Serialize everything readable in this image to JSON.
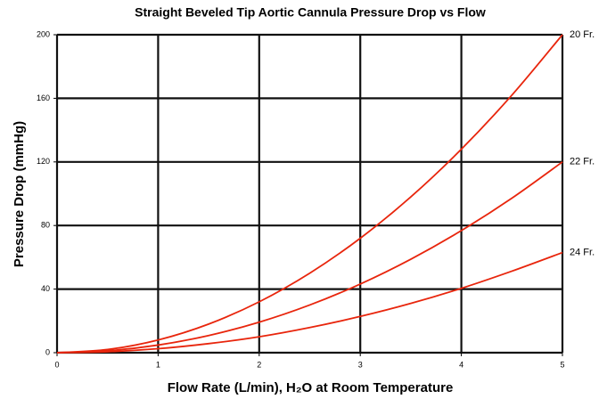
{
  "chart_data": {
    "type": "line",
    "title": "Straight Beveled Tip Aortic Cannula Pressure Drop vs Flow",
    "xlabel": "Flow Rate (L/min), H₂O at Room Temperature",
    "ylabel": "Pressure Drop (mmHg)",
    "x": [
      0,
      0.5,
      1,
      1.5,
      2,
      2.5,
      3,
      3.5,
      4,
      4.5,
      5
    ],
    "series": [
      {
        "name": "20 Fr.",
        "color": "#e8250c",
        "values": [
          0,
          2,
          8,
          18,
          32,
          50,
          72,
          98,
          128,
          162,
          200
        ]
      },
      {
        "name": "22 Fr.",
        "color": "#e8250c",
        "values": [
          0,
          1.2,
          4.8,
          10.8,
          19.2,
          30,
          43.2,
          58.8,
          76.8,
          97.2,
          120
        ]
      },
      {
        "name": "24 Fr.",
        "color": "#e8250c",
        "values": [
          0,
          0.6,
          2.5,
          5.7,
          10,
          15.8,
          22.8,
          31,
          40.5,
          51.3,
          63
        ]
      }
    ],
    "xlim": [
      0,
      5
    ],
    "xticks": [
      0,
      1,
      2,
      3,
      4,
      5
    ],
    "ylim": [
      0,
      200
    ],
    "yticks": [
      0,
      40,
      80,
      120,
      160,
      200
    ],
    "grid": true
  }
}
